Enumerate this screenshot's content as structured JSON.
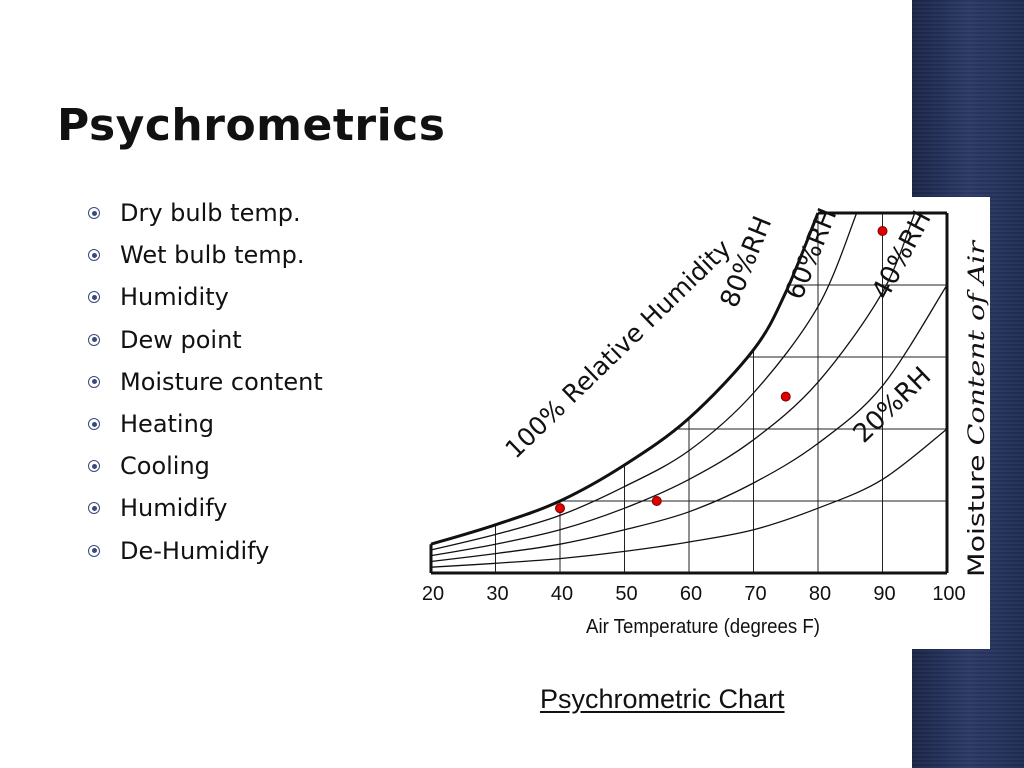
{
  "slide": {
    "title": "Psychrometrics",
    "bullets": [
      "Dry bulb temp.",
      "Wet bulb temp.",
      "Humidity",
      "Dew point",
      "Moisture content",
      "Heating",
      "Cooling",
      "Humidify",
      "De-Humidify"
    ],
    "caption": "Psychrometric Chart",
    "colors": {
      "sidebar": "#24325a",
      "accent": "#3a4a78",
      "point": "#e00000"
    }
  },
  "chart_data": {
    "type": "line",
    "title": "",
    "xlabel": "Air Temperature (degrees F)",
    "ylabel_parts": [
      "Moisture",
      "Content of Air"
    ],
    "x_ticks": [
      20,
      30,
      40,
      50,
      60,
      70,
      80,
      90,
      100
    ],
    "xlim": [
      20,
      100
    ],
    "ylim": [
      0,
      1
    ],
    "grid": true,
    "curve_labels": [
      "100% Relative Humidity",
      "80%RH",
      "60%RH",
      "40%RH",
      "20%RH"
    ],
    "series": [
      {
        "name": "100% Relative Humidity",
        "x": [
          20,
          30,
          40,
          50,
          60,
          70,
          75,
          80
        ],
        "y": [
          0.08,
          0.134,
          0.2,
          0.3,
          0.43,
          0.62,
          0.78,
          1.0
        ]
      },
      {
        "name": "80%RH",
        "x": [
          20,
          30,
          40,
          50,
          60,
          70,
          80,
          86
        ],
        "y": [
          0.064,
          0.107,
          0.16,
          0.24,
          0.34,
          0.5,
          0.74,
          1.0
        ]
      },
      {
        "name": "60%RH",
        "x": [
          20,
          30,
          40,
          50,
          60,
          70,
          80,
          90,
          95
        ],
        "y": [
          0.048,
          0.08,
          0.12,
          0.18,
          0.26,
          0.37,
          0.53,
          0.78,
          1.0
        ]
      },
      {
        "name": "40%RH",
        "x": [
          20,
          30,
          40,
          50,
          60,
          70,
          80,
          90,
          100
        ],
        "y": [
          0.032,
          0.054,
          0.08,
          0.12,
          0.17,
          0.25,
          0.36,
          0.52,
          0.8
        ]
      },
      {
        "name": "20%RH",
        "x": [
          20,
          30,
          40,
          50,
          60,
          70,
          80,
          90,
          100
        ],
        "y": [
          0.016,
          0.027,
          0.04,
          0.06,
          0.086,
          0.12,
          0.18,
          0.26,
          0.4
        ]
      }
    ],
    "points": [
      {
        "x": 40,
        "y": 0.18
      },
      {
        "x": 55,
        "y": 0.2
      },
      {
        "x": 75,
        "y": 0.49
      },
      {
        "x": 90,
        "y": 0.95
      }
    ]
  }
}
